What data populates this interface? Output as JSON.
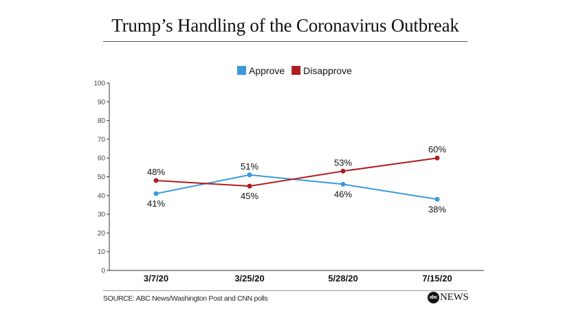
{
  "chart_data": {
    "type": "line",
    "title": "Trump’s Handling of the Coronavirus Outbreak",
    "categories": [
      "3/7/20",
      "3/25/20",
      "5/28/20",
      "7/15/20"
    ],
    "series": [
      {
        "name": "Approve",
        "color": "#3a9ad9",
        "values": [
          41,
          51,
          46,
          38
        ],
        "labels": [
          "41%",
          "51%",
          "46%",
          "38%"
        ]
      },
      {
        "name": "Disapprove",
        "color": "#b01c1c",
        "values": [
          48,
          45,
          53,
          60
        ],
        "labels": [
          "48%",
          "45%",
          "53%",
          "60%"
        ]
      }
    ],
    "ylim": [
      0,
      100
    ],
    "yticks": [
      "0",
      "10",
      "20",
      "30",
      "40",
      "50",
      "60",
      "70",
      "80",
      "90",
      "100"
    ],
    "grid": false,
    "legend_position": "top-center"
  },
  "footer": {
    "source": "SOURCE: ABC News/Washington Post and CNN polls",
    "logo_badge": "abc",
    "logo_word": "NEWS"
  }
}
